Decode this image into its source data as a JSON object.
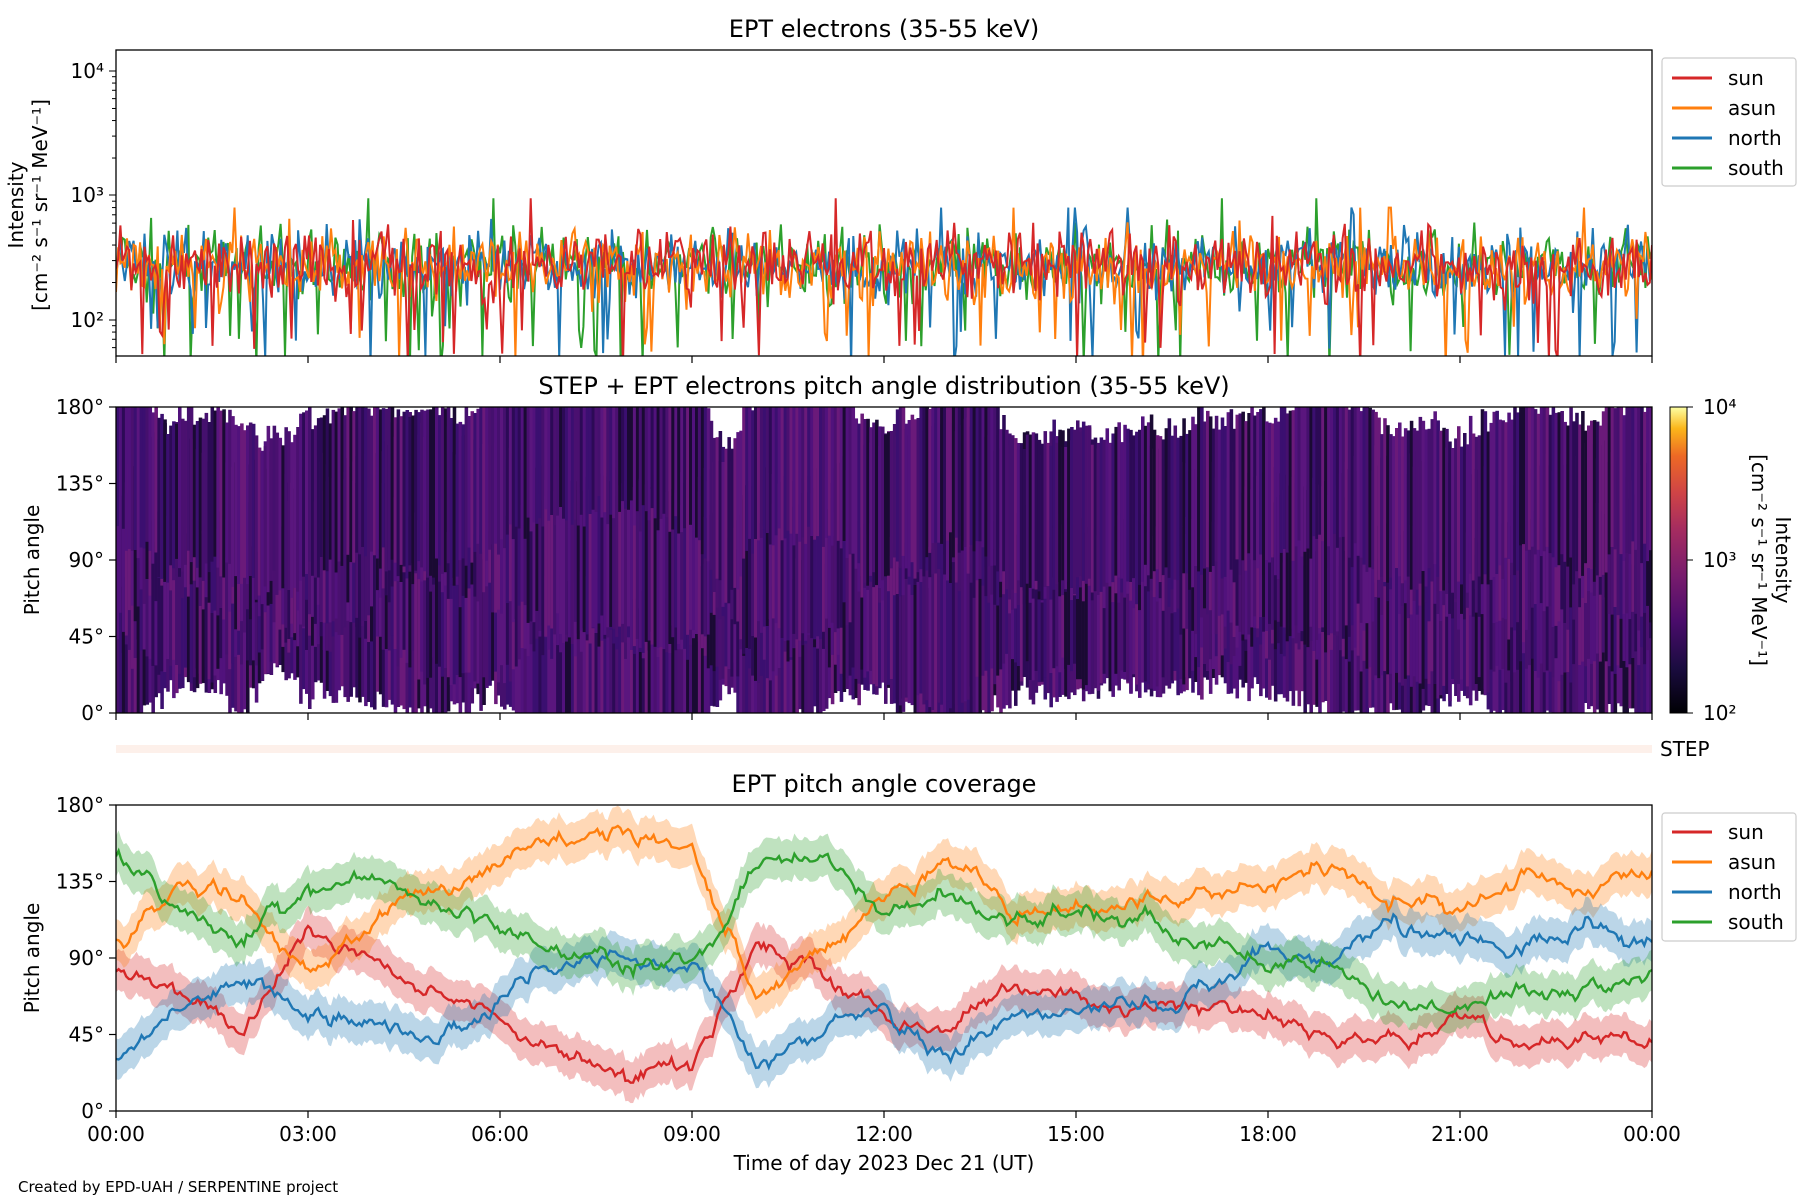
{
  "figure": {
    "credit": "Created by EPD-UAH / SERPENTINE project",
    "xlabel": "Time of day 2023 Dec 21 (UT)",
    "xticks": [
      "00:00",
      "03:00",
      "06:00",
      "09:00",
      "12:00",
      "15:00",
      "18:00",
      "21:00",
      "00:00"
    ],
    "xlim_hours": [
      0,
      24
    ]
  },
  "colors": {
    "sun": "#d62728",
    "asun": "#ff7f0e",
    "north": "#1f77b4",
    "south": "#2ca02c"
  },
  "panel1": {
    "title": "EPT electrons (35-55 keV)",
    "ylabel_line1": "Intensity",
    "ylabel_line2": "[cm⁻² s⁻¹ sr⁻¹ MeV⁻¹]",
    "yticks": [
      "10²",
      "10³",
      "10⁴"
    ]
  },
  "panel2": {
    "title": "STEP + EPT electrons pitch angle distribution (35-55 keV)",
    "ylabel": "Pitch angle",
    "yticks": [
      "0°",
      "45°",
      "90°",
      "135°",
      "180°"
    ],
    "colorbar_ticks": [
      "10²",
      "10³",
      "10⁴"
    ],
    "colorbar_label_line1": "Intensity",
    "colorbar_label_line2": "[cm⁻² s⁻¹ sr⁻¹ MeV⁻¹]"
  },
  "step_label": "STEP",
  "panel3": {
    "title": "EPT pitch angle coverage",
    "ylabel": "Pitch angle",
    "yticks": [
      "0°",
      "45°",
      "90°",
      "135°",
      "180°"
    ]
  },
  "legend": [
    "sun",
    "asun",
    "north",
    "south"
  ],
  "chart_data": [
    {
      "type": "line",
      "title": "EPT electrons (35-55 keV)",
      "xlabel": "",
      "ylabel": "Intensity [cm⁻² s⁻¹ sr⁻¹ MeV⁻¹]",
      "yscale": "log",
      "ylim": [
        50,
        15000
      ],
      "x_unit": "hours UT",
      "legend_position": "outside-right-top",
      "series": [
        {
          "name": "sun",
          "typical_range": [
            150,
            650
          ],
          "peak": 950
        },
        {
          "name": "asun",
          "typical_range": [
            150,
            650
          ],
          "peak": 800
        },
        {
          "name": "north",
          "typical_range": [
            150,
            650
          ],
          "peak": 800
        },
        {
          "name": "south",
          "typical_range": [
            150,
            650
          ],
          "peak": 950
        }
      ]
    },
    {
      "type": "heatmap",
      "title": "STEP + EPT electrons pitch angle distribution (35-55 keV)",
      "ylabel": "Pitch angle",
      "ylim": [
        0,
        180
      ],
      "colorbar": {
        "scale": "log",
        "range": [
          100,
          10000
        ],
        "colormap": "inferno"
      },
      "typical_intensity": [
        200,
        400
      ]
    },
    {
      "type": "line",
      "title": "EPT pitch angle coverage",
      "xlabel": "Time of day 2023 Dec 21 (UT)",
      "ylabel": "Pitch angle",
      "ylim": [
        0,
        180
      ],
      "x": [
        0,
        1,
        2,
        3,
        4,
        5,
        6,
        7,
        8,
        9,
        10,
        11,
        12,
        13,
        14,
        15,
        16,
        17,
        18,
        19,
        20,
        21,
        22,
        23,
        24
      ],
      "legend_position": "outside-right",
      "series": [
        {
          "name": "sun",
          "values": [
            80,
            70,
            45,
            105,
            90,
            75,
            55,
            35,
            22,
            25,
            100,
            80,
            55,
            50,
            70,
            65,
            60,
            60,
            55,
            45,
            45,
            50,
            40,
            45,
            40
          ]
        },
        {
          "name": "asun",
          "values": [
            100,
            130,
            125,
            80,
            110,
            130,
            150,
            165,
            165,
            160,
            70,
            90,
            130,
            150,
            115,
            120,
            125,
            125,
            130,
            140,
            125,
            120,
            135,
            135,
            140
          ]
        },
        {
          "name": "north",
          "values": [
            35,
            60,
            80,
            60,
            50,
            40,
            70,
            85,
            90,
            85,
            30,
            45,
            60,
            30,
            55,
            55,
            60,
            75,
            95,
            90,
            115,
            100,
            95,
            115,
            100
          ]
        },
        {
          "name": "south",
          "values": [
            150,
            120,
            100,
            130,
            135,
            120,
            105,
            95,
            85,
            90,
            140,
            150,
            120,
            130,
            110,
            120,
            115,
            95,
            90,
            85,
            60,
            65,
            70,
            70,
            80
          ]
        }
      ]
    }
  ]
}
